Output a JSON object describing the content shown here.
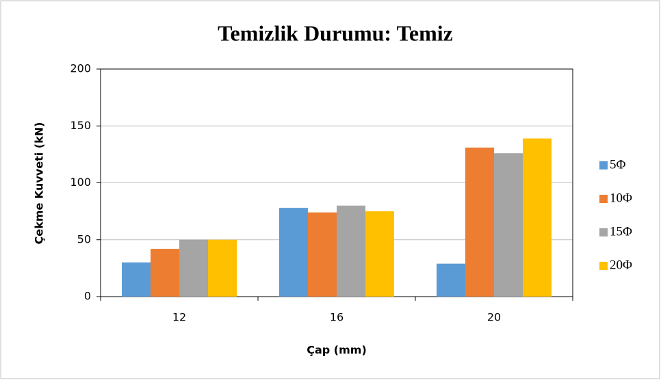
{
  "chart_data": {
    "type": "bar",
    "title": "Temizlik Durumu: Temiz",
    "xlabel": "Çap (mm)",
    "ylabel": "Çekme Kuvveti (kN)",
    "categories": [
      "12",
      "16",
      "20"
    ],
    "series": [
      {
        "name": "5Φ",
        "color": "#5b9bd5",
        "values": [
          30,
          78,
          29
        ]
      },
      {
        "name": "10Φ",
        "color": "#ed7d31",
        "values": [
          42,
          74,
          131
        ]
      },
      {
        "name": "15Φ",
        "color": "#a5a5a5",
        "values": [
          50,
          80,
          126
        ]
      },
      {
        "name": "20Φ",
        "color": "#ffc000",
        "values": [
          50,
          75,
          139
        ]
      }
    ],
    "ylim": [
      0,
      200
    ],
    "yticks": [
      0,
      50,
      100,
      150,
      200
    ],
    "grid": true,
    "legend": "right"
  }
}
